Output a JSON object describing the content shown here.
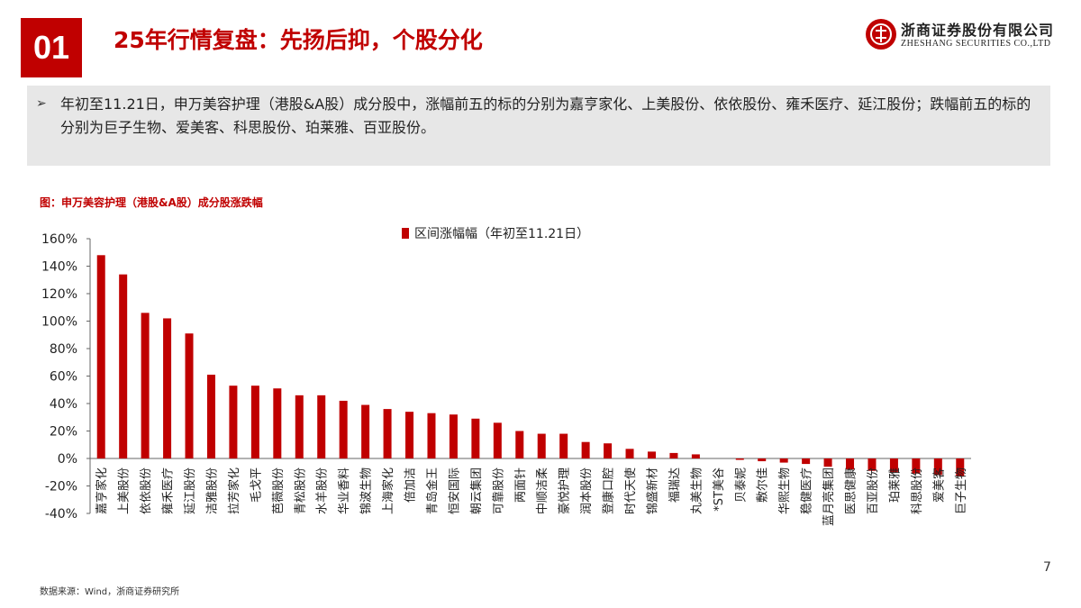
{
  "header": {
    "section_number": "01",
    "title": "25年行情复盘：先扬后抑，个股分化",
    "logo_name_cn": "浙商证券股份有限公司",
    "logo_name_en": "ZHESHANG SECURITIES CO.,LTD",
    "logo_icon": "zheshang-logo-icon",
    "brand_color": "#c00000"
  },
  "summary": {
    "bullet_icon": "arrow-bullet-icon",
    "bullet_glyph": "➢",
    "text": "年初至11.21日，申万美容护理（港股&A股）成分股中，涨幅前五的标的分别为嘉亨家化、上美股份、依依股份、雍禾医疗、延江股份；跌幅前五的标的分别为巨子生物、爱美客、科思股份、珀莱雅、百亚股份。"
  },
  "figure": {
    "title": "图：申万美容护理（港股&A股）成分股涨跌幅"
  },
  "chart_data": {
    "type": "bar",
    "title": "图：申万美容护理（港股&A股）成分股涨跌幅",
    "xlabel": "",
    "ylabel": "",
    "ylim": [
      -40,
      160
    ],
    "yticks": [
      -40,
      -20,
      0,
      20,
      40,
      60,
      80,
      100,
      120,
      140,
      160
    ],
    "ytick_labels": [
      "-40%",
      "-20%",
      "0%",
      "20%",
      "40%",
      "60%",
      "80%",
      "100%",
      "120%",
      "140%",
      "160%"
    ],
    "legend": "top-center",
    "grid": false,
    "bar_color": "#c00000",
    "categories": [
      "嘉亨家化",
      "上美股份",
      "依依股份",
      "雍禾医疗",
      "延江股份",
      "洁雅股份",
      "拉芳家化",
      "毛戈平",
      "芭薇股份",
      "青松股份",
      "水羊股份",
      "华业香料",
      "锦波生物",
      "上海家化",
      "倍加洁",
      "青岛金王",
      "恒安国际",
      "朝云集团",
      "可靠股份",
      "两面针",
      "中顺洁柔",
      "豪悦护理",
      "润本股份",
      "登康口腔",
      "时代天使",
      "锦盛新材",
      "福瑞达",
      "丸美生物",
      "*ST美谷",
      "贝泰妮",
      "敷尔佳",
      "华熙生物",
      "稳健医疗",
      "蓝月亮集团",
      "医思健康",
      "百亚股份",
      "珀莱雅",
      "科思股份",
      "爱美客",
      "巨子生物"
    ],
    "series": [
      {
        "name": "区间涨幅幅（年初至11.21日）",
        "values": [
          148,
          134,
          106,
          102,
          91,
          61,
          53,
          53,
          51,
          46,
          46,
          42,
          39,
          36,
          34,
          33,
          32,
          29,
          26,
          20,
          18,
          18,
          12,
          11,
          7,
          5,
          4,
          3,
          0,
          -1,
          -2,
          -3,
          -4,
          -6,
          -8,
          -9,
          -10,
          -11,
          -12,
          -13
        ]
      }
    ]
  },
  "footer": {
    "source": "数据来源：Wind，浙商证券研究所",
    "page_number": "7"
  }
}
